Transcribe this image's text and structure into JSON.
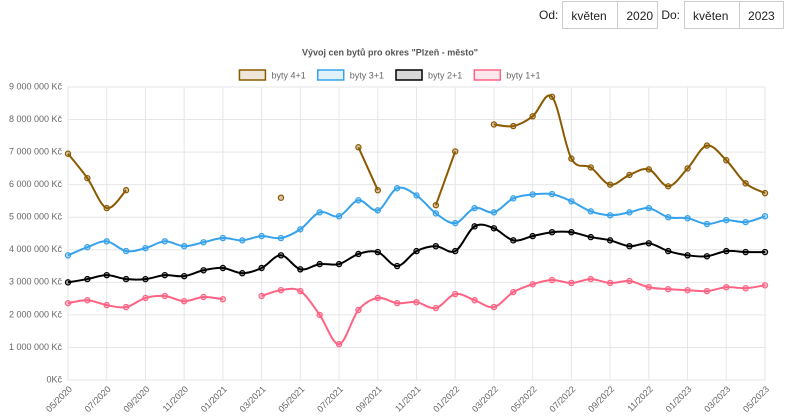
{
  "controls": {
    "from_label": "Od:",
    "from_month": "květen",
    "from_year": "2020",
    "to_label": "Do:",
    "to_month": "květen",
    "to_year": "2023"
  },
  "chart_data": {
    "type": "line",
    "title": "Vývoj cen bytů pro okres \"Plzeň - město\"",
    "categories": [
      "05/2020",
      null,
      "07/2020",
      null,
      "09/2020",
      null,
      "11/2020",
      null,
      "01/2021",
      null,
      "03/2021",
      null,
      "05/2021",
      null,
      "07/2021",
      null,
      "09/2021",
      null,
      "11/2021",
      null,
      "01/2022",
      null,
      "03/2022",
      null,
      "05/2022",
      null,
      "07/2022",
      null,
      "09/2022",
      null,
      "11/2022",
      null,
      "01/2023",
      null,
      "03/2023",
      null,
      "05/2023"
    ],
    "ylim": [
      0,
      9000000
    ],
    "yticks": [
      {
        "value": 0,
        "label": "0Kč"
      },
      {
        "value": 1000000,
        "label": "1 000 000 Kč"
      },
      {
        "value": 2000000,
        "label": "2 000 000 Kč"
      },
      {
        "value": 3000000,
        "label": "3 000 000 Kč"
      },
      {
        "value": 4000000,
        "label": "4 000 000 Kč"
      },
      {
        "value": 5000000,
        "label": "5 000 000 Kč"
      },
      {
        "value": 6000000,
        "label": "6 000 000 Kč"
      },
      {
        "value": 7000000,
        "label": "7 000 000 Kč"
      },
      {
        "value": 8000000,
        "label": "8 000 000 Kč"
      },
      {
        "value": 9000000,
        "label": "9 000 000 Kč"
      }
    ],
    "grid": true,
    "legend": "top",
    "series": [
      {
        "name": "byty 4+1",
        "color": "#8b5a00",
        "values": [
          6950000,
          6200000,
          5280000,
          5830000,
          null,
          null,
          null,
          null,
          null,
          null,
          null,
          5600000,
          null,
          null,
          null,
          7150000,
          5830000,
          null,
          null,
          5370000,
          7020000,
          null,
          7850000,
          7800000,
          8100000,
          8700000,
          6800000,
          6530000,
          6000000,
          6300000,
          6470000,
          5950000,
          6500000,
          7200000,
          6750000,
          6040000,
          5740000
        ]
      },
      {
        "name": "byty 3+1",
        "color": "#36a2eb",
        "values": [
          3830000,
          4080000,
          4260000,
          3960000,
          4050000,
          4260000,
          4110000,
          4230000,
          4360000,
          4290000,
          4420000,
          4360000,
          4630000,
          5150000,
          5030000,
          5520000,
          5210000,
          5890000,
          5670000,
          5120000,
          4820000,
          5280000,
          5150000,
          5580000,
          5700000,
          5710000,
          5490000,
          5180000,
          5060000,
          5150000,
          5280000,
          5000000,
          4970000,
          4790000,
          4910000,
          4850000,
          5030000
        ]
      },
      {
        "name": "byty 2+1",
        "color": "#000000",
        "values": [
          3000000,
          3100000,
          3220000,
          3100000,
          3100000,
          3220000,
          3190000,
          3370000,
          3440000,
          3280000,
          3440000,
          3830000,
          3400000,
          3560000,
          3560000,
          3870000,
          3930000,
          3500000,
          3960000,
          4110000,
          3960000,
          4720000,
          4660000,
          4290000,
          4420000,
          4540000,
          4540000,
          4390000,
          4290000,
          4110000,
          4200000,
          3960000,
          3830000,
          3800000,
          3960000,
          3930000,
          3930000
        ]
      },
      {
        "name": "byty 1+1",
        "color": "#ff6384",
        "values": [
          2360000,
          2450000,
          2300000,
          2240000,
          2520000,
          2580000,
          2420000,
          2550000,
          2480000,
          null,
          2580000,
          2760000,
          2730000,
          2000000,
          1100000,
          2150000,
          2520000,
          2360000,
          2390000,
          2210000,
          2640000,
          2450000,
          2240000,
          2700000,
          2940000,
          3070000,
          2980000,
          3100000,
          2980000,
          3040000,
          2850000,
          2790000,
          2760000,
          2730000,
          2850000,
          2820000,
          2910000
        ]
      }
    ]
  }
}
